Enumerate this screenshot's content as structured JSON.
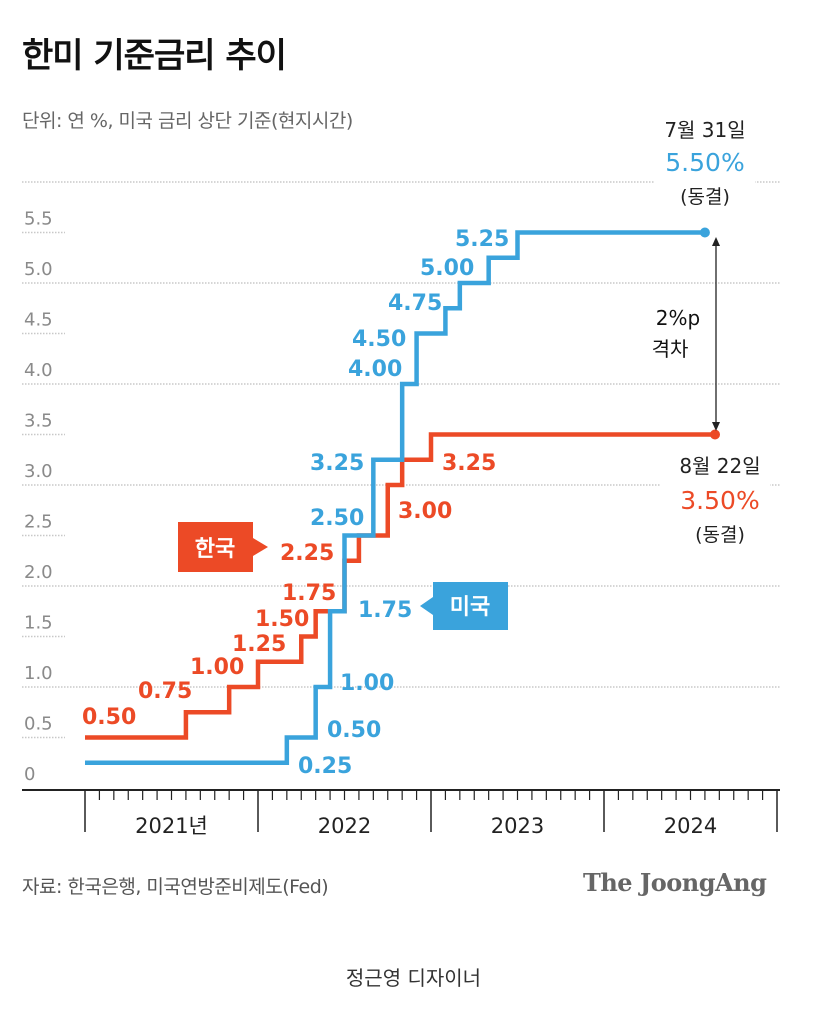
{
  "title": "한미 기준금리 추이",
  "subtitle": "단위: 연 %, 미국 금리 상단 기준(현지시간)",
  "source": "자료: 한국은행, 미국연방준비제도(Fed)",
  "logo": "The JoongAng",
  "credit": "정근영 디자이너",
  "chart_data": {
    "type": "line",
    "step": true,
    "title": "한미 기준금리 추이",
    "ylabel": "",
    "xlabel": "",
    "ylim": [
      0,
      6
    ],
    "yticks": [
      "0",
      "0.5",
      "1.0",
      "1.5",
      "2.0",
      "2.5",
      "3.0",
      "3.5",
      "4.0",
      "4.5",
      "5.0",
      "5.5"
    ],
    "xticks": [
      "2021년",
      "2022",
      "2023",
      "2024"
    ],
    "grid": true,
    "series": [
      {
        "name": "한국",
        "color": "#ec4a26",
        "points": [
          {
            "date": "2021-01-01",
            "value": 0.5,
            "label": "0.50"
          },
          {
            "date": "2021-08-01",
            "value": 0.75,
            "label": "0.75"
          },
          {
            "date": "2021-11-01",
            "value": 1.0,
            "label": "1.00"
          },
          {
            "date": "2022-01-01",
            "value": 1.25,
            "label": "1.25"
          },
          {
            "date": "2022-04-01",
            "value": 1.5,
            "label": "1.50"
          },
          {
            "date": "2022-05-01",
            "value": 1.75,
            "label": "1.75"
          },
          {
            "date": "2022-07-01",
            "value": 2.25,
            "label": "2.25"
          },
          {
            "date": "2022-08-01",
            "value": 2.5,
            "label": ""
          },
          {
            "date": "2022-10-01",
            "value": 3.0,
            "label": "3.00"
          },
          {
            "date": "2022-11-01",
            "value": 3.25,
            "label": "3.25"
          },
          {
            "date": "2023-01-01",
            "value": 3.5,
            "label": ""
          },
          {
            "date": "2024-08-22",
            "value": 3.5,
            "label": ""
          }
        ]
      },
      {
        "name": "미국",
        "color": "#3aa3dc",
        "points": [
          {
            "date": "2021-01-01",
            "value": 0.25,
            "label": "0.25"
          },
          {
            "date": "2022-03-01",
            "value": 0.5,
            "label": "0.50"
          },
          {
            "date": "2022-05-01",
            "value": 1.0,
            "label": "1.00"
          },
          {
            "date": "2022-06-01",
            "value": 1.75,
            "label": "1.75"
          },
          {
            "date": "2022-07-01",
            "value": 2.5,
            "label": "2.50"
          },
          {
            "date": "2022-09-01",
            "value": 3.25,
            "label": "3.25"
          },
          {
            "date": "2022-11-01",
            "value": 4.0,
            "label": "4.00"
          },
          {
            "date": "2022-12-01",
            "value": 4.5,
            "label": "4.50"
          },
          {
            "date": "2023-02-01",
            "value": 4.75,
            "label": "4.75"
          },
          {
            "date": "2023-03-01",
            "value": 5.0,
            "label": "5.00"
          },
          {
            "date": "2023-05-01",
            "value": 5.25,
            "label": "5.25"
          },
          {
            "date": "2023-07-01",
            "value": 5.5,
            "label": ""
          },
          {
            "date": "2024-07-31",
            "value": 5.5,
            "label": ""
          }
        ]
      }
    ],
    "annotations": {
      "us_end": {
        "date": "7월 31일",
        "rate": "5.50%",
        "note": "(동결)"
      },
      "kr_end": {
        "date": "8월 22일",
        "rate": "3.50%",
        "note": "(동결)"
      },
      "gap": [
        "2%p",
        "격차"
      ]
    }
  }
}
